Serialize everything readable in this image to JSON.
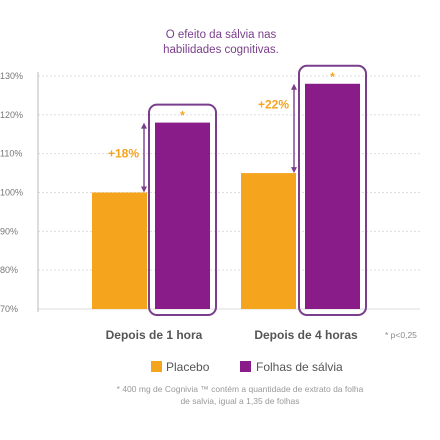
{
  "chart_data": {
    "type": "bar",
    "title_lines": [
      "O efeito da sálvia nas",
      "habilidades cognitivas."
    ],
    "categories": [
      "Depois de 1 hora",
      "Depois de 4 horas"
    ],
    "series": [
      {
        "name": "Placebo",
        "color": "#f5a41d",
        "values": [
          100,
          105
        ]
      },
      {
        "name": "Folhas de sálvia",
        "color": "#8a1c8a",
        "values": [
          118,
          128
        ]
      }
    ],
    "y_ticks": [
      "130%",
      "120%",
      "110%",
      "100%",
      "90%",
      "80%",
      "70%"
    ],
    "y_values": [
      130,
      120,
      110,
      100,
      90,
      80,
      70
    ],
    "ylim": [
      70,
      130
    ],
    "increase_labels": [
      "+18%",
      "+22%"
    ],
    "significance_marker": "*",
    "significance_note": "* p<0,25",
    "highlight_color": "#7a3f8c",
    "footnote_lines": [
      "* 400 mg de Cognivia ™ contém a quantidade de extrato da folha",
      "de salvia, igual a 1,35 de folhas"
    ]
  }
}
